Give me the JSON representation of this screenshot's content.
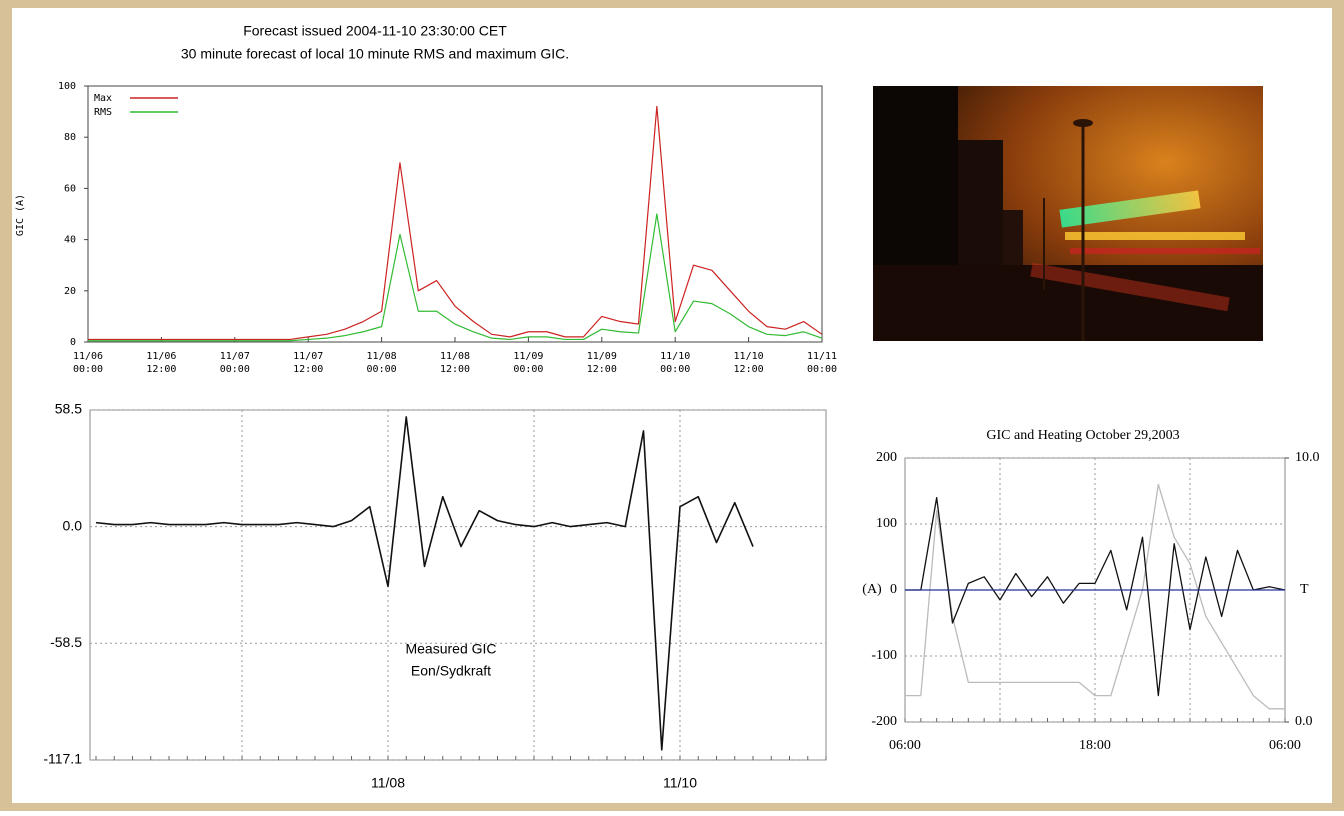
{
  "chart_data": [
    {
      "type": "line",
      "title": "Forecast issued 2004-11-10 23:30:00 CET",
      "subtitle": "30 minute forecast of local 10 minute RMS and maximum GIC.",
      "y_label": "GIC (A)",
      "x": [
        "11/06 00:00",
        "11/06 03:00",
        "11/06 06:00",
        "11/06 09:00",
        "11/06 12:00",
        "11/06 15:00",
        "11/06 18:00",
        "11/06 21:00",
        "11/07 00:00",
        "11/07 03:00",
        "11/07 06:00",
        "11/07 09:00",
        "11/07 12:00",
        "11/07 15:00",
        "11/07 18:00",
        "11/07 21:00",
        "11/08 00:00",
        "11/08 03:00",
        "11/08 06:00",
        "11/08 09:00",
        "11/08 12:00",
        "11/08 15:00",
        "11/08 18:00",
        "11/08 21:00",
        "11/09 00:00",
        "11/09 03:00",
        "11/09 06:00",
        "11/09 09:00",
        "11/09 12:00",
        "11/09 15:00",
        "11/09 18:00",
        "11/09 21:00",
        "11/10 00:00",
        "11/10 03:00",
        "11/10 06:00",
        "11/10 09:00",
        "11/10 12:00",
        "11/10 15:00",
        "11/10 18:00",
        "11/10 21:00",
        "11/11 00:00"
      ],
      "series": [
        {
          "name": "Max",
          "color": "#cc2222",
          "values": [
            1,
            1,
            1,
            1,
            1,
            1,
            1,
            1,
            1,
            1,
            1,
            1,
            2,
            3,
            5,
            8,
            12,
            70,
            20,
            24,
            14,
            8,
            3,
            2,
            4,
            4,
            2,
            2,
            10,
            8,
            7,
            92,
            8,
            30,
            28,
            20,
            12,
            6,
            5,
            8,
            3
          ]
        },
        {
          "name": "RMS",
          "color": "#33bb33",
          "values": [
            0.5,
            0.5,
            0.5,
            0.5,
            0.5,
            0.5,
            0.5,
            0.5,
            0.5,
            0.5,
            0.5,
            0.5,
            1,
            1.5,
            2.5,
            4,
            6,
            42,
            12,
            12,
            7,
            4,
            1.5,
            1,
            2,
            2,
            1,
            1,
            5,
            4,
            3.5,
            50,
            4,
            16,
            15,
            11,
            6,
            3,
            2.5,
            4,
            1.5
          ]
        }
      ],
      "xticks": [
        "11/06 00:00",
        "11/06 12:00",
        "11/07 00:00",
        "11/07 12:00",
        "11/08 00:00",
        "11/08 12:00",
        "11/09 00:00",
        "11/09 12:00",
        "11/10 00:00",
        "11/10 12:00",
        "11/11 00:00"
      ],
      "ylim": [
        0,
        100
      ],
      "yticks": [
        0,
        20,
        40,
        60,
        80,
        100
      ],
      "legend": "upper-left"
    },
    {
      "type": "line",
      "annotations": [
        "Measured GIC",
        "Eon/Sydkraft"
      ],
      "categories": [
        null,
        null,
        null,
        null,
        null,
        null,
        null,
        null,
        null,
        null,
        null,
        null,
        null,
        null,
        null,
        null,
        "11/08",
        null,
        null,
        null,
        null,
        null,
        null,
        null,
        null,
        null,
        null,
        null,
        null,
        null,
        null,
        null,
        "11/10",
        null,
        null,
        null,
        null,
        null,
        null,
        null,
        null
      ],
      "values": [
        2,
        1,
        1,
        2,
        1,
        1,
        1,
        2,
        1,
        1,
        1,
        2,
        1,
        0,
        3,
        10,
        -30,
        55,
        -20,
        15,
        -10,
        8,
        3,
        1,
        0,
        2,
        0,
        1,
        2,
        0,
        48,
        -112,
        10,
        15,
        -8,
        12,
        -10,
        null,
        null,
        null,
        null
      ],
      "color": "#111111",
      "ylim": [
        -117.1,
        58.5
      ],
      "yticks": [
        58.5,
        {
          "value": 0,
          "label": "0.0"
        },
        -58.5,
        -117.1
      ],
      "grid": true
    },
    {
      "type": "line",
      "title": "GIC and Heating October 29,2003",
      "y_label": "(A)",
      "y2_label": "T",
      "categories": [
        "06:00",
        null,
        null,
        null,
        null,
        null,
        null,
        null,
        null,
        null,
        null,
        null,
        "18:00",
        null,
        null,
        null,
        null,
        null,
        null,
        null,
        null,
        null,
        null,
        null,
        "06:00"
      ],
      "series": [
        {
          "color": "#bbbbbb",
          "axis": "y2",
          "values": [
            1,
            1,
            8,
            4,
            1.5,
            1.5,
            1.5,
            1.5,
            1.5,
            1.5,
            1.5,
            1.5,
            1,
            1,
            3,
            5,
            9,
            7,
            6,
            4,
            3,
            2,
            1,
            0.5,
            0.5
          ]
        },
        {
          "color": "#111111",
          "values": [
            0,
            0,
            140,
            -50,
            10,
            20,
            -15,
            25,
            -10,
            20,
            -20,
            10,
            10,
            60,
            -30,
            80,
            -160,
            70,
            -60,
            50,
            -40,
            60,
            0,
            5,
            0
          ]
        }
      ],
      "ylim": [
        -200,
        200
      ],
      "yticks": [
        200,
        100,
        0,
        -100,
        -200
      ],
      "y2lim": [
        0,
        10
      ],
      "y2ticks": [
        {
          "value": 10,
          "label": "10.0"
        },
        {
          "value": 0,
          "label": "0.0"
        }
      ],
      "grid": true
    }
  ]
}
